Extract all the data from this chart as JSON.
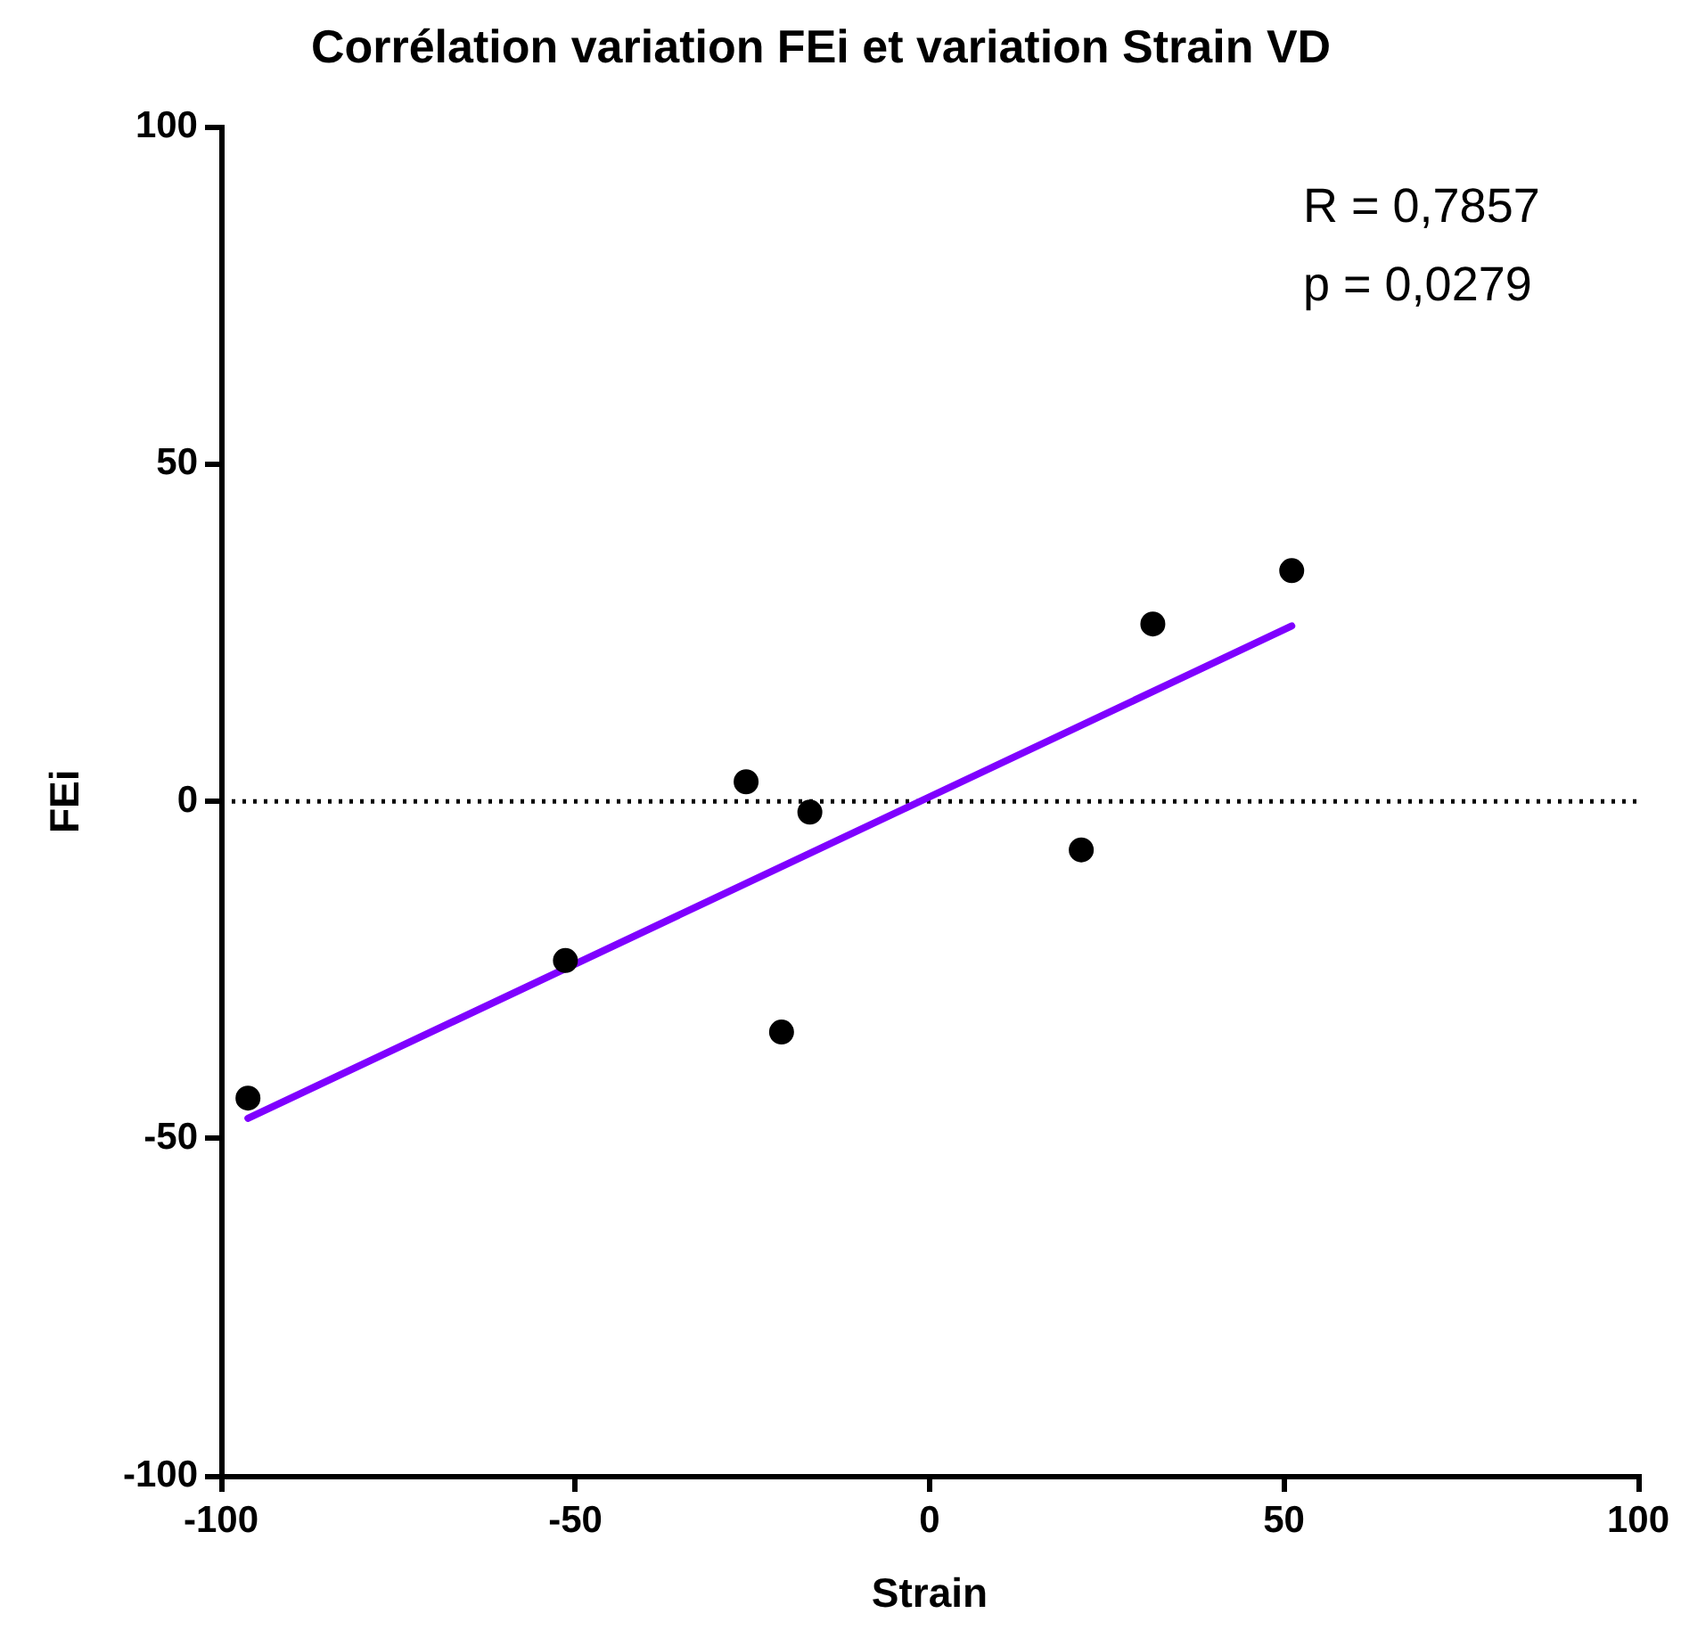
{
  "chart_data": {
    "type": "scatter",
    "title": "Corrélation variation FEi et variation Strain VD",
    "xlabel": "Strain",
    "ylabel": "FEi",
    "x": [
      -96.2,
      -51.4,
      -25.9,
      -20.9,
      -16.9,
      21.4,
      31.5,
      51.1
    ],
    "series": [
      {
        "type": "scatter",
        "color": "#000000",
        "marker": "circle",
        "values": [
          -44.0,
          -23.6,
          2.9,
          -34.2,
          -1.6,
          -7.2,
          26.3,
          34.2
        ]
      },
      {
        "type": "line",
        "color": "#7f00ff",
        "marker": "none",
        "line_style": "solid",
        "x": [
          -96.2,
          51.1
        ],
        "values": [
          -47.0,
          26.0
        ]
      }
    ],
    "xlim": [
      -100,
      100
    ],
    "xticks": [
      -100,
      -50,
      0,
      50,
      100
    ],
    "ylim": [
      -100,
      100
    ],
    "yticks": [
      -100,
      -50,
      0,
      50,
      100
    ],
    "ref_lines": [
      {
        "axis": "y",
        "value": 0,
        "line_style": "dotted",
        "color": "#000000"
      }
    ],
    "annotations": [
      "R = 0,7857",
      "p = 0,0279"
    ],
    "grid": false,
    "legend": false
  }
}
